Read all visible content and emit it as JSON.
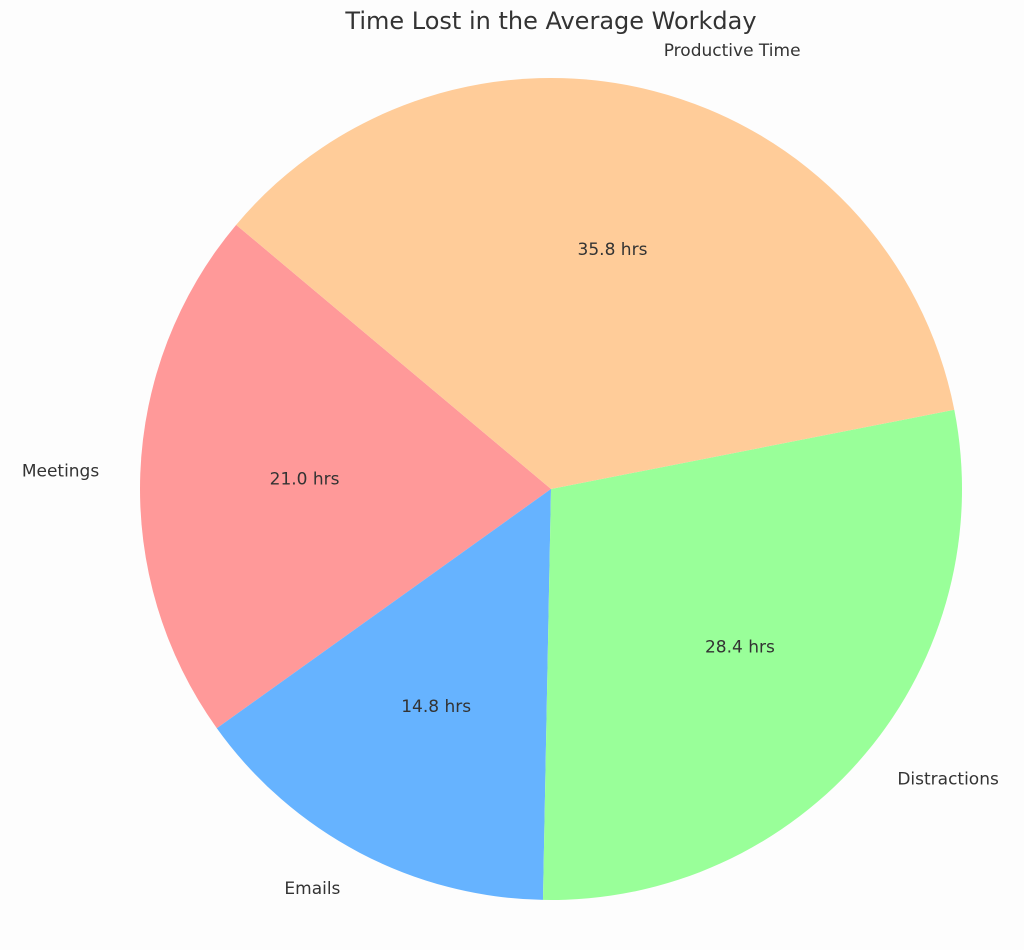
{
  "chart_data": {
    "type": "pie",
    "title": "Time Lost in the Average Workday",
    "categories": [
      "Meetings",
      "Emails",
      "Distractions",
      "Productive Time"
    ],
    "values": [
      21.0,
      14.8,
      28.4,
      35.8
    ],
    "value_labels": [
      "21.0 hrs",
      "14.8 hrs",
      "28.4 hrs",
      "35.8 hrs"
    ],
    "colors": [
      "#ff9999",
      "#66b3ff",
      "#99ff99",
      "#ffcc99"
    ]
  }
}
